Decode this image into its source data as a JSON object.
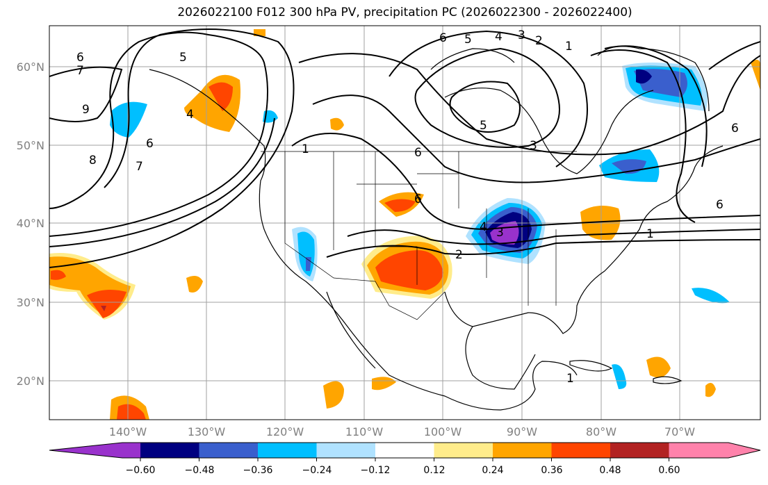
{
  "title": "2026022100 F012 300 hPa PV, precipitation PC (2026022300 - 2026022400)",
  "lon_labels": [
    "140°W",
    "130°W",
    "120°W",
    "110°W",
    "100°W",
    "90°W",
    "80°W",
    "70°W"
  ],
  "lat_labels": [
    "60°N",
    "50°N",
    "40°N",
    "30°N",
    "20°N"
  ],
  "colorbar": {
    "ticks": [
      "−0.60",
      "−0.48",
      "−0.36",
      "−0.24",
      "−0.12",
      "0.12",
      "0.24",
      "0.36",
      "0.48",
      "0.60"
    ],
    "colors": [
      "#9932cc",
      "#000080",
      "#3a5fcd",
      "#00bfff",
      "#b0e2ff",
      "#ffffff",
      "#ffec8b",
      "#ffa500",
      "#ff4500",
      "#b22222",
      "#ff82ab"
    ]
  },
  "contour_labels": [
    "7",
    "6",
    "9",
    "8",
    "7",
    "6",
    "5",
    "4",
    "5",
    "4",
    "3",
    "2",
    "1",
    "6",
    "5",
    "3",
    "6",
    "1",
    "6",
    "4",
    "3",
    "2",
    "1",
    "6",
    "6",
    "1"
  ]
}
